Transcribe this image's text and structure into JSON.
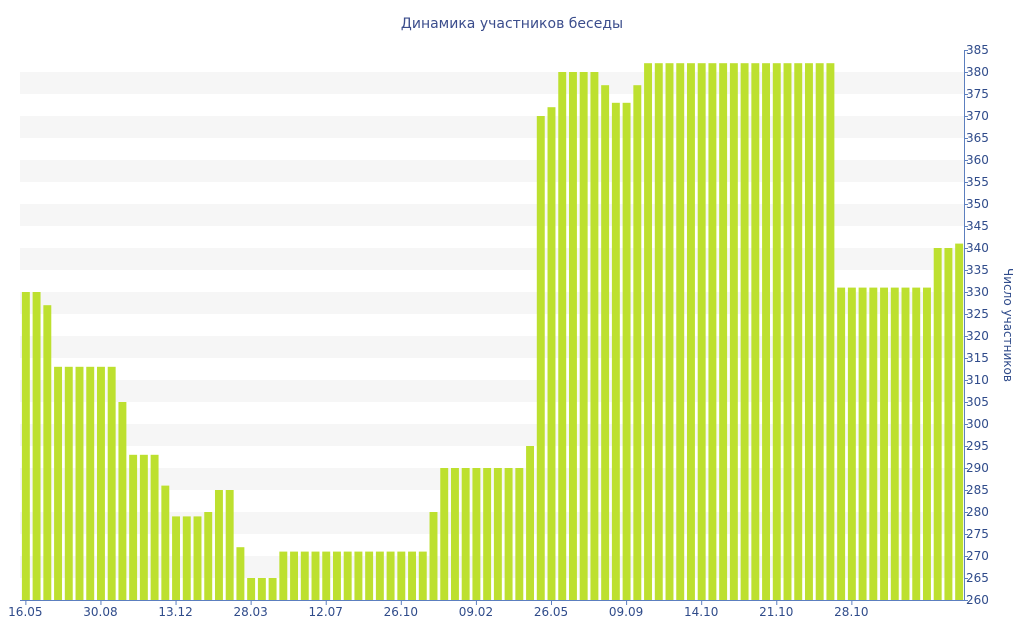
{
  "chart_data": {
    "type": "bar",
    "title": "Динамика участников беседы",
    "ylabel": "Число участников",
    "xlabel": "",
    "ylim": [
      260,
      385
    ],
    "y_ticks": [
      260,
      265,
      270,
      275,
      280,
      285,
      290,
      295,
      300,
      305,
      310,
      315,
      320,
      325,
      330,
      335,
      340,
      345,
      350,
      355,
      360,
      365,
      370,
      375,
      380,
      385
    ],
    "x_tick_labels": [
      {
        "label": "16.05",
        "index": 0
      },
      {
        "label": "30.08",
        "index": 7
      },
      {
        "label": "13.12",
        "index": 14
      },
      {
        "label": "28.03",
        "index": 21
      },
      {
        "label": "12.07",
        "index": 28
      },
      {
        "label": "26.10",
        "index": 35
      },
      {
        "label": "09.02",
        "index": 42
      },
      {
        "label": "26.05",
        "index": 49
      },
      {
        "label": "09.09",
        "index": 56
      },
      {
        "label": "14.10",
        "index": 63
      },
      {
        "label": "21.10",
        "index": 70
      },
      {
        "label": "28.10",
        "index": 77
      }
    ],
    "values": [
      330,
      330,
      327,
      313,
      313,
      313,
      313,
      313,
      313,
      305,
      293,
      293,
      293,
      286,
      279,
      279,
      279,
      280,
      285,
      285,
      272,
      265,
      265,
      265,
      271,
      271,
      271,
      271,
      271,
      271,
      271,
      271,
      271,
      271,
      271,
      271,
      271,
      271,
      280,
      290,
      290,
      290,
      290,
      290,
      290,
      290,
      290,
      295,
      370,
      372,
      380,
      380,
      380,
      380,
      377,
      373,
      373,
      377,
      382,
      382,
      382,
      382,
      382,
      382,
      382,
      382,
      382,
      382,
      382,
      382,
      382,
      382,
      382,
      382,
      382,
      382,
      331,
      331,
      331,
      331,
      331,
      331,
      331,
      331,
      331,
      340,
      340,
      341
    ],
    "colors": {
      "bar": "#bde02f",
      "band": "#f6f6f6",
      "axis": "#5c7fbf",
      "text": "#2f4b8a",
      "title": "#3b4d8c"
    },
    "grid": "alternating-bands",
    "y_axis_position": "right"
  }
}
